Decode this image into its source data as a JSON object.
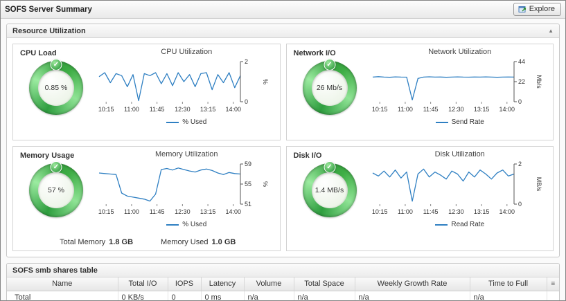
{
  "window": {
    "title": "SOFS Server Summary",
    "explore": {
      "label": "Explore"
    }
  },
  "resource_panel": {
    "title": "Resource Utilization"
  },
  "icons": {
    "collapse": "▲",
    "column_chooser": "≡",
    "check": "✓"
  },
  "colors": {
    "chart_line": "#2e7fc2",
    "gauge_green": "#3fae46"
  },
  "quadrants": [
    {
      "gauge_label": "CPU Load",
      "gauge_value": "0.85 %"
    },
    {
      "gauge_label": "Network I/O",
      "gauge_value": "26 Mb/s"
    },
    {
      "gauge_label": "Memory Usage",
      "gauge_value": "57 %",
      "footer": {
        "total_memory_label": "Total Memory",
        "total_memory_value": "1.8 GB",
        "memory_used_label": "Memory Used",
        "memory_used_value": "1.0 GB"
      }
    },
    {
      "gauge_label": "Disk I/O",
      "gauge_value": "1.4 MB/s"
    }
  ],
  "chart_data": [
    {
      "type": "line",
      "title": "CPU Utilization",
      "ylabel": "%",
      "legend": "% Used",
      "x_ticks": [
        "10:15",
        "11:00",
        "11:45",
        "12:30",
        "13:15",
        "14:00"
      ],
      "ylim": [
        0,
        2
      ],
      "yticks": [
        0,
        2
      ],
      "series": [
        {
          "name": "% Used",
          "values": [
            1.25,
            1.45,
            0.95,
            1.4,
            1.3,
            0.75,
            1.35,
            0.05,
            1.4,
            1.3,
            1.45,
            0.9,
            1.4,
            0.8,
            1.45,
            1.0,
            1.35,
            0.75,
            1.4,
            1.45,
            0.6,
            1.35,
            0.95,
            1.45,
            0.7,
            1.3
          ]
        }
      ]
    },
    {
      "type": "line",
      "title": "Network Utilization",
      "ylabel": "Mb/s",
      "legend": "Send Rate",
      "x_ticks": [
        "10:15",
        "11:00",
        "11:45",
        "12:30",
        "13:15",
        "14:00"
      ],
      "ylim": [
        0,
        44
      ],
      "yticks": [
        0,
        22,
        44
      ],
      "series": [
        {
          "name": "Send Rate",
          "values": [
            27,
            27.5,
            27,
            26.8,
            27.2,
            27,
            26.9,
            2,
            25.5,
            27,
            27.3,
            27,
            27.1,
            26.8,
            27,
            27.2,
            27,
            26.9,
            27.1,
            27,
            27.2,
            27,
            26.8,
            27,
            27.1,
            27
          ]
        }
      ]
    },
    {
      "type": "line",
      "title": "Memory Utilization",
      "ylabel": "%",
      "legend": "% Used",
      "x_ticks": [
        "10:15",
        "11:00",
        "11:45",
        "12:30",
        "13:15",
        "14:00"
      ],
      "ylim": [
        51,
        59
      ],
      "yticks": [
        51,
        55,
        59
      ],
      "series": [
        {
          "name": "% Used",
          "values": [
            57.2,
            57.1,
            57.0,
            56.9,
            53.2,
            52.6,
            52.4,
            52.2,
            52.0,
            51.6,
            53.0,
            57.9,
            58.1,
            57.8,
            58.2,
            57.9,
            57.6,
            57.4,
            57.8,
            58.0,
            57.7,
            57.2,
            56.9,
            57.3,
            57.1,
            57.0
          ]
        }
      ]
    },
    {
      "type": "line",
      "title": "Disk Utilization",
      "ylabel": "MB/s",
      "legend": "Read Rate",
      "x_ticks": [
        "10:15",
        "11:00",
        "11:45",
        "12:30",
        "13:15",
        "14:00"
      ],
      "ylim": [
        0,
        2
      ],
      "yticks": [
        0,
        2
      ],
      "series": [
        {
          "name": "Read Rate",
          "values": [
            1.55,
            1.4,
            1.65,
            1.35,
            1.7,
            1.3,
            1.6,
            0.15,
            1.5,
            1.75,
            1.35,
            1.6,
            1.45,
            1.25,
            1.65,
            1.5,
            1.15,
            1.6,
            1.35,
            1.7,
            1.5,
            1.25,
            1.55,
            1.7,
            1.4,
            1.5
          ]
        }
      ]
    }
  ],
  "table": {
    "title": "SOFS smb shares table",
    "columns": [
      "Name",
      "Total I/O",
      "IOPS",
      "Latency",
      "Volume",
      "Total Space",
      "Weekly Growth Rate",
      "Time to Full"
    ],
    "rows": [
      [
        "_Total",
        "0 KB/s",
        "0",
        "0 ms",
        "n/a",
        "n/a",
        "n/a",
        "n/a"
      ]
    ]
  }
}
